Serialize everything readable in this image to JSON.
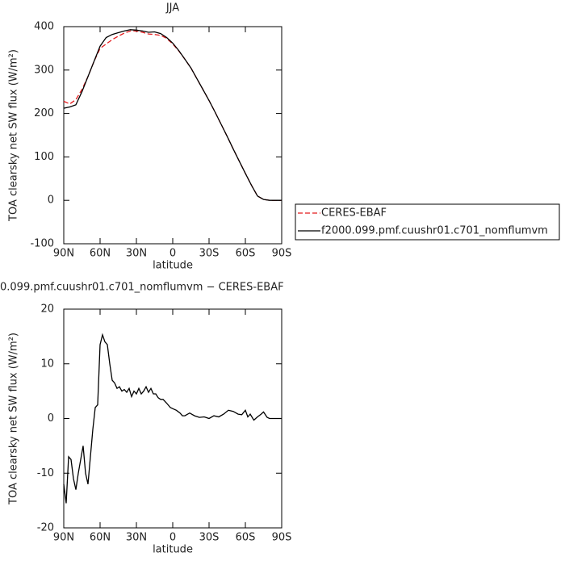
{
  "chart_data": [
    {
      "type": "line",
      "title": "JJA",
      "xlabel": "latitude",
      "ylabel": "TOA clearsky net SW flux (W/m²)",
      "x": [
        90,
        85,
        80,
        75,
        70,
        65,
        60,
        55,
        50,
        45,
        40,
        35,
        30,
        25,
        20,
        15,
        10,
        5,
        0,
        -5,
        -10,
        -15,
        -20,
        -25,
        -30,
        -35,
        -40,
        -45,
        -50,
        -55,
        -60,
        -65,
        -70,
        -75,
        -80,
        -85,
        -90
      ],
      "series": [
        {
          "name": "CERES-EBAF",
          "color": "#e41a1c",
          "style": "dashed",
          "values": [
            228,
            222,
            232,
            255,
            285,
            320,
            350,
            360,
            370,
            378,
            385,
            390,
            390,
            387,
            383,
            382,
            380,
            373,
            360,
            344,
            325,
            305,
            280,
            255,
            230,
            203,
            175,
            147,
            118,
            90,
            62,
            35,
            10,
            2,
            0,
            0,
            0
          ]
        },
        {
          "name": "f2000.099.pmf.cuushr01.c701_nomflumvm",
          "color": "#000000",
          "style": "solid",
          "values": [
            212,
            215,
            220,
            250,
            285,
            320,
            355,
            375,
            382,
            386,
            390,
            393,
            392,
            390,
            387,
            388,
            384,
            375,
            362,
            345,
            325,
            305,
            280,
            255,
            230,
            203,
            175,
            147,
            118,
            90,
            62,
            35,
            10,
            2,
            0,
            0,
            0
          ]
        }
      ],
      "xlim": [
        90,
        -90
      ],
      "xticks": [
        {
          "value": 90,
          "label": "90N"
        },
        {
          "value": 60,
          "label": "60N"
        },
        {
          "value": 30,
          "label": "30N"
        },
        0,
        {
          "value": -30,
          "label": "30S"
        },
        {
          "value": -60,
          "label": "60S"
        },
        {
          "value": -90,
          "label": "90S"
        }
      ],
      "ylim": [
        -100,
        400
      ],
      "yticks": [
        -100,
        0,
        100,
        200,
        300,
        400
      ],
      "legend": "right"
    },
    {
      "type": "line",
      "title": "0.099.pmf.cuushr01.c701_nomflumvm − CERES-EBAF",
      "xlabel": "latitude",
      "ylabel": "TOA clearsky net SW flux (W/m²)",
      "x": [
        90,
        88,
        86,
        84,
        82,
        80,
        78,
        76,
        74,
        72,
        70,
        68,
        66,
        64,
        62,
        61,
        60,
        58,
        56,
        54,
        52,
        50,
        48,
        46,
        44,
        42,
        40,
        38,
        36,
        34,
        32,
        30,
        28,
        26,
        24,
        22,
        20,
        18,
        16,
        14,
        12,
        10,
        8,
        5,
        2,
        0,
        -3,
        -6,
        -8,
        -10,
        -14,
        -18,
        -22,
        -26,
        -30,
        -34,
        -38,
        -42,
        -46,
        -50,
        -54,
        -57,
        -60,
        -62,
        -64,
        -67,
        -70,
        -73,
        -75,
        -78,
        -80,
        -90
      ],
      "series": [
        {
          "color": "#000000",
          "style": "solid",
          "values": [
            -12,
            -15.5,
            -7,
            -7.5,
            -11,
            -13,
            -10,
            -7.5,
            -5,
            -10,
            -12,
            -7,
            -2,
            2,
            2.5,
            8,
            13.5,
            15.3,
            14,
            13.5,
            10,
            7,
            6.5,
            5.5,
            5.8,
            5,
            5.3,
            4.8,
            5.5,
            4,
            5,
            4.5,
            5.5,
            4.5,
            5,
            5.8,
            4.8,
            5.5,
            4.5,
            4.5,
            3.8,
            3.5,
            3.5,
            2.8,
            2,
            1.8,
            1.5,
            1,
            0.5,
            0.5,
            1,
            0.5,
            0.2,
            0.3,
            0,
            0.5,
            0.3,
            0.8,
            1.5,
            1.3,
            0.8,
            0.7,
            1.5,
            0.3,
            0.8,
            -0.3,
            0.3,
            0.8,
            1.2,
            0.2,
            0,
            0
          ]
        }
      ],
      "xlim": [
        90,
        -90
      ],
      "xticks": [
        {
          "value": 90,
          "label": "90N"
        },
        {
          "value": 60,
          "label": "60N"
        },
        {
          "value": 30,
          "label": "30N"
        },
        0,
        {
          "value": -30,
          "label": "30S"
        },
        {
          "value": -60,
          "label": "60S"
        },
        {
          "value": -90,
          "label": "90S"
        }
      ],
      "ylim": [
        -20,
        20
      ],
      "yticks": [
        -20,
        -10,
        0,
        10,
        20
      ]
    }
  ]
}
